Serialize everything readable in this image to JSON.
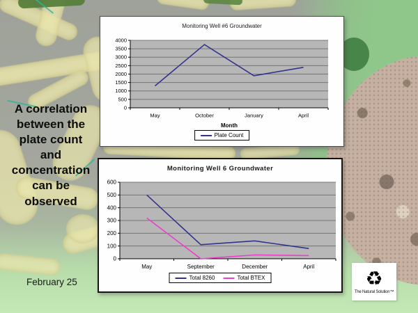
{
  "slide": {
    "headline": "A correlation\nbetween the\nplate count\nand\nconcentration\ncan be\nobserved",
    "date_label": "February 25",
    "logo": {
      "icon": "recycle-icon",
      "symbol": "♻",
      "caption": "The Natural Solution™"
    }
  },
  "chart_data": [
    {
      "type": "line",
      "title": "Monitoring Well #6 Groundwater",
      "xlabel": "Month",
      "ylabel": "",
      "categories": [
        "May",
        "October",
        "January",
        "April"
      ],
      "series": [
        {
          "name": "Plate Count",
          "color": "#32328c",
          "values": [
            1300,
            3750,
            1900,
            2400
          ]
        }
      ],
      "ylim": [
        0,
        4000
      ],
      "ytick": 500,
      "grid": true,
      "legend_position": "bottom",
      "plot_bg": "#b7b7b7"
    },
    {
      "type": "line",
      "title": "Monitoring Well 6 Groundwater",
      "xlabel": "",
      "ylabel": "",
      "categories": [
        "May",
        "September",
        "December",
        "April"
      ],
      "series": [
        {
          "name": "Total 8260",
          "color": "#32328c",
          "values": [
            500,
            110,
            140,
            80
          ]
        },
        {
          "name": "Total BTEX",
          "color": "#ef3dcb",
          "values": [
            320,
            0,
            30,
            25
          ]
        }
      ],
      "ylim": [
        0,
        600
      ],
      "ytick": 100,
      "grid": true,
      "legend_position": "bottom",
      "plot_bg": "#b7b7b7"
    }
  ]
}
